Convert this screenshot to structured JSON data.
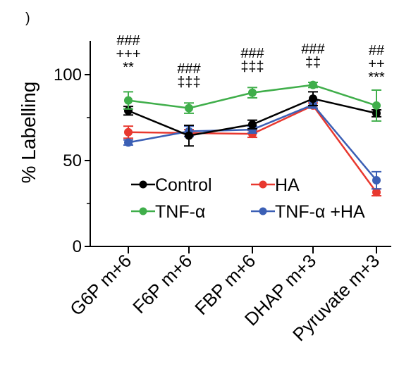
{
  "chart_data": {
    "type": "line",
    "panel_mark": ")",
    "ylabel": "% Labelling",
    "xlabel": "",
    "ylim": [
      0,
      120
    ],
    "yticks": [
      0,
      50,
      100
    ],
    "ytick_labels": [
      "0",
      "50",
      "100"
    ],
    "categories": [
      "G6P m+6",
      "F6P m+6",
      "FBP m+6",
      "DHAP m+3",
      "Pyruvate m+3"
    ],
    "series": [
      {
        "name": "Control",
        "color": "#000000",
        "values": [
          79,
          64.5,
          71,
          86,
          77.5
        ],
        "errors": [
          2.5,
          6,
          2.5,
          4,
          2
        ]
      },
      {
        "name": "TNF-α",
        "color": "#3fae4a",
        "values": [
          85,
          80.5,
          89.5,
          94,
          82
        ],
        "errors": [
          5,
          3,
          3,
          1.5,
          9
        ]
      },
      {
        "name": "HA",
        "color": "#e8382f",
        "values": [
          66.5,
          66,
          65.5,
          82,
          31.5
        ],
        "errors": [
          3.5,
          2,
          2,
          1.5,
          2
        ]
      },
      {
        "name": "TNF-α +HA",
        "color": "#3b5fb5",
        "values": [
          60.5,
          67,
          68,
          82.5,
          38.5
        ],
        "errors": [
          1.5,
          3,
          2,
          2,
          5
        ]
      }
    ],
    "legend": {
      "placement": "bottom-center",
      "entries": [
        "Control",
        "HA",
        "TNF-α",
        "TNF-α +HA"
      ]
    },
    "annotations": [
      {
        "category": "G6P m+6",
        "lines": [
          "###",
          "+++",
          "**"
        ]
      },
      {
        "category": "F6P m+6",
        "lines": [
          "###",
          "‡‡‡"
        ]
      },
      {
        "category": "FBP m+6",
        "lines": [
          "###",
          "‡‡‡"
        ]
      },
      {
        "category": "DHAP m+3",
        "lines": [
          "###",
          "‡‡"
        ]
      },
      {
        "category": "Pyruvate m+3",
        "lines": [
          "##",
          "++",
          "***"
        ]
      }
    ],
    "grid": false
  }
}
